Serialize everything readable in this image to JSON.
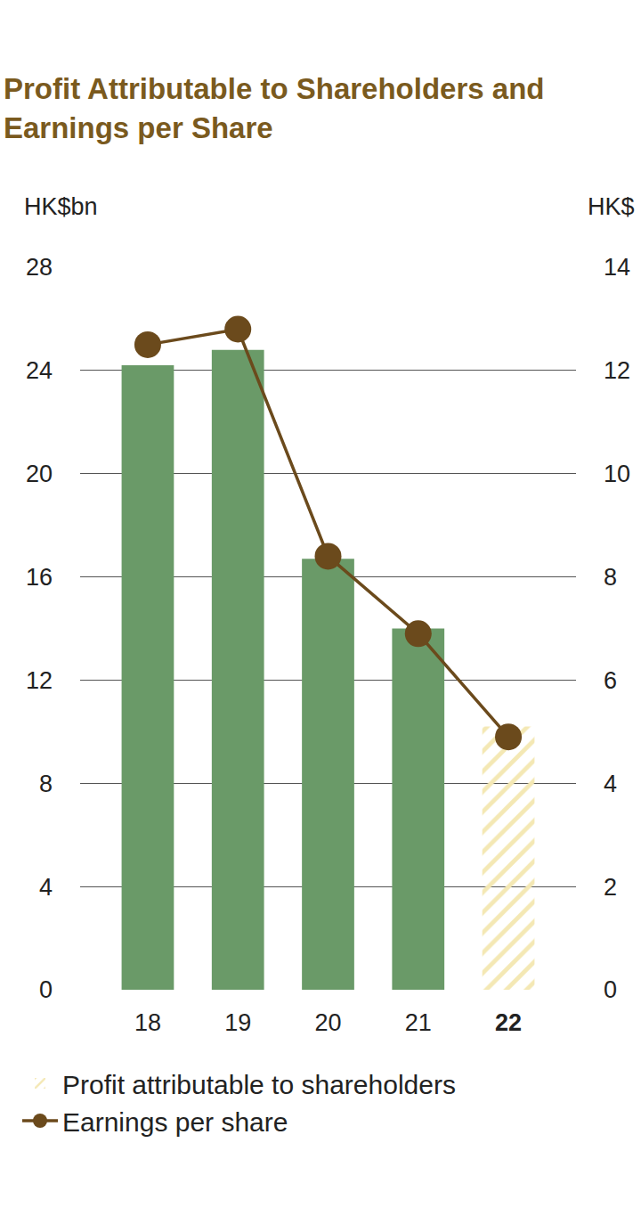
{
  "chart_data": {
    "type": "bar",
    "title": "Profit Attributable to Shareholders and Earnings per Share",
    "ylabel": "HK$bn",
    "y2label": "HK$",
    "categories": [
      "18",
      "19",
      "20",
      "21",
      "22"
    ],
    "series": [
      {
        "name": "Profit attributable to shareholders",
        "type": "bar",
        "color": "#c8993a",
        "colors": [
          "#6a9a68",
          "#6a9a68",
          "#6a9a68",
          "#6a9a68",
          "#c8993a"
        ],
        "values": [
          24.2,
          24.8,
          16.7,
          14.0,
          10.2
        ]
      },
      {
        "name": "Earnings per share",
        "type": "line",
        "axis": "y2",
        "color": "#6b4a1c",
        "marker": "circle",
        "values": [
          12.5,
          12.8,
          8.4,
          6.9,
          4.9
        ]
      }
    ],
    "ylim": [
      0,
      28
    ],
    "yticks": [
      0,
      4,
      8,
      12,
      16,
      20,
      24,
      28
    ],
    "y2lim": [
      0,
      14
    ],
    "y2ticks": [
      0,
      2,
      4,
      6,
      8,
      10,
      12,
      14
    ],
    "grid": true
  }
}
